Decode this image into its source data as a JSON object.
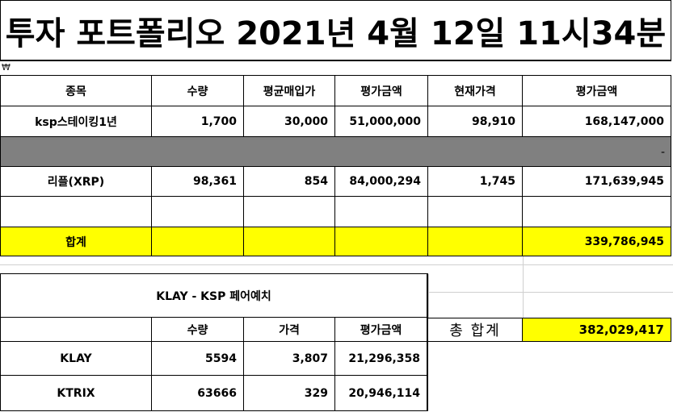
{
  "title": "투자 포트폴리오 2021년 4월 12일 11시34분",
  "currency_symbol": "₩",
  "portfolio": {
    "headers": [
      "종목",
      "수량",
      "평균매입가",
      "평가금액",
      "현재가격",
      "평가금액"
    ],
    "rows": [
      [
        "ksp스테이킹1년",
        "1,700",
        "30,000",
        "51,000,000",
        "98,910",
        "168,147,000"
      ],
      [
        "",
        "",
        "",
        "",
        "",
        "-"
      ],
      [
        "리플(XRP)",
        "98,361",
        "854",
        "84,000,294",
        "1,745",
        "171,639,945"
      ],
      [
        "",
        "",
        "",
        "",
        "",
        ""
      ]
    ],
    "total": {
      "label": "합계",
      "value": "339,786,945"
    }
  },
  "pair": {
    "title": "KLAY - KSP 페어예치",
    "headers": [
      "수량",
      "가격",
      "평가금액"
    ],
    "rows": [
      [
        "KLAY",
        "5594",
        "3,807",
        "21,296,358"
      ],
      [
        "KTRIX",
        "63666",
        "329",
        "20,946,114"
      ]
    ]
  },
  "grand_total": {
    "label": "총 합계",
    "value": "382,029,417"
  },
  "colors": {
    "highlight": "#ffff00",
    "separator": "#808080"
  }
}
